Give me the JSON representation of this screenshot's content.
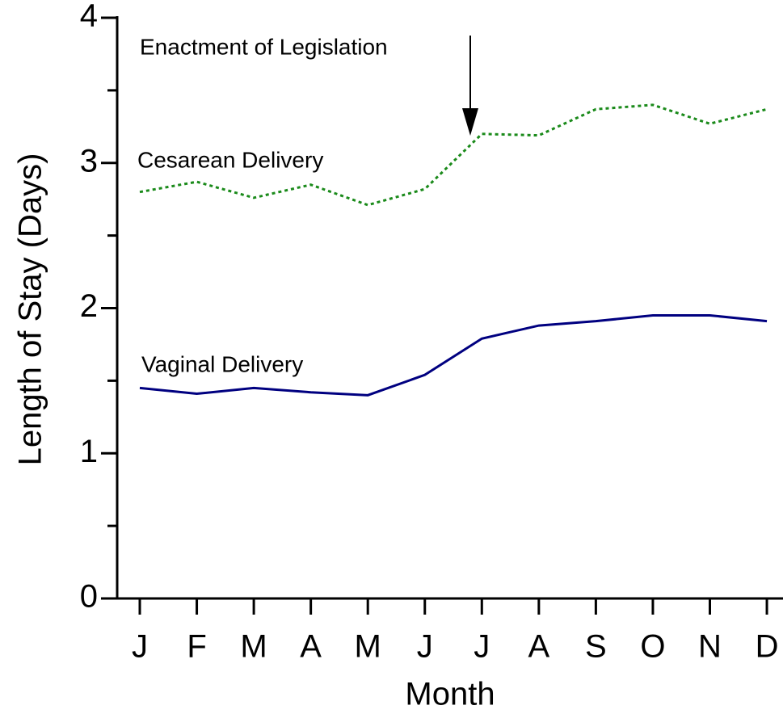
{
  "chart_data": {
    "type": "line",
    "y_label": "Length of Stay (Days)",
    "x_label": "Month",
    "annotation": "Enactment of Legislation",
    "categories": [
      "J",
      "F",
      "M",
      "A",
      "M",
      "J",
      "J",
      "A",
      "S",
      "O",
      "N",
      "D"
    ],
    "series": [
      {
        "name": "Cesarean Delivery",
        "color": "#1a8a1a",
        "dash": "dotted",
        "values": [
          2.8,
          2.87,
          2.76,
          2.85,
          2.71,
          2.82,
          3.2,
          3.19,
          3.37,
          3.4,
          3.27,
          3.37
        ]
      },
      {
        "name": "Vaginal Delivery",
        "color": "#000080",
        "dash": "solid",
        "values": [
          1.45,
          1.41,
          1.45,
          1.42,
          1.4,
          1.54,
          1.79,
          1.88,
          1.91,
          1.95,
          1.95,
          1.91
        ]
      }
    ],
    "ylim": [
      0,
      4
    ],
    "yticks": [
      0,
      1,
      2,
      3,
      4
    ],
    "yminor_ticks": [
      0.5,
      1.5,
      2.5,
      3.5
    ],
    "grid": false
  }
}
